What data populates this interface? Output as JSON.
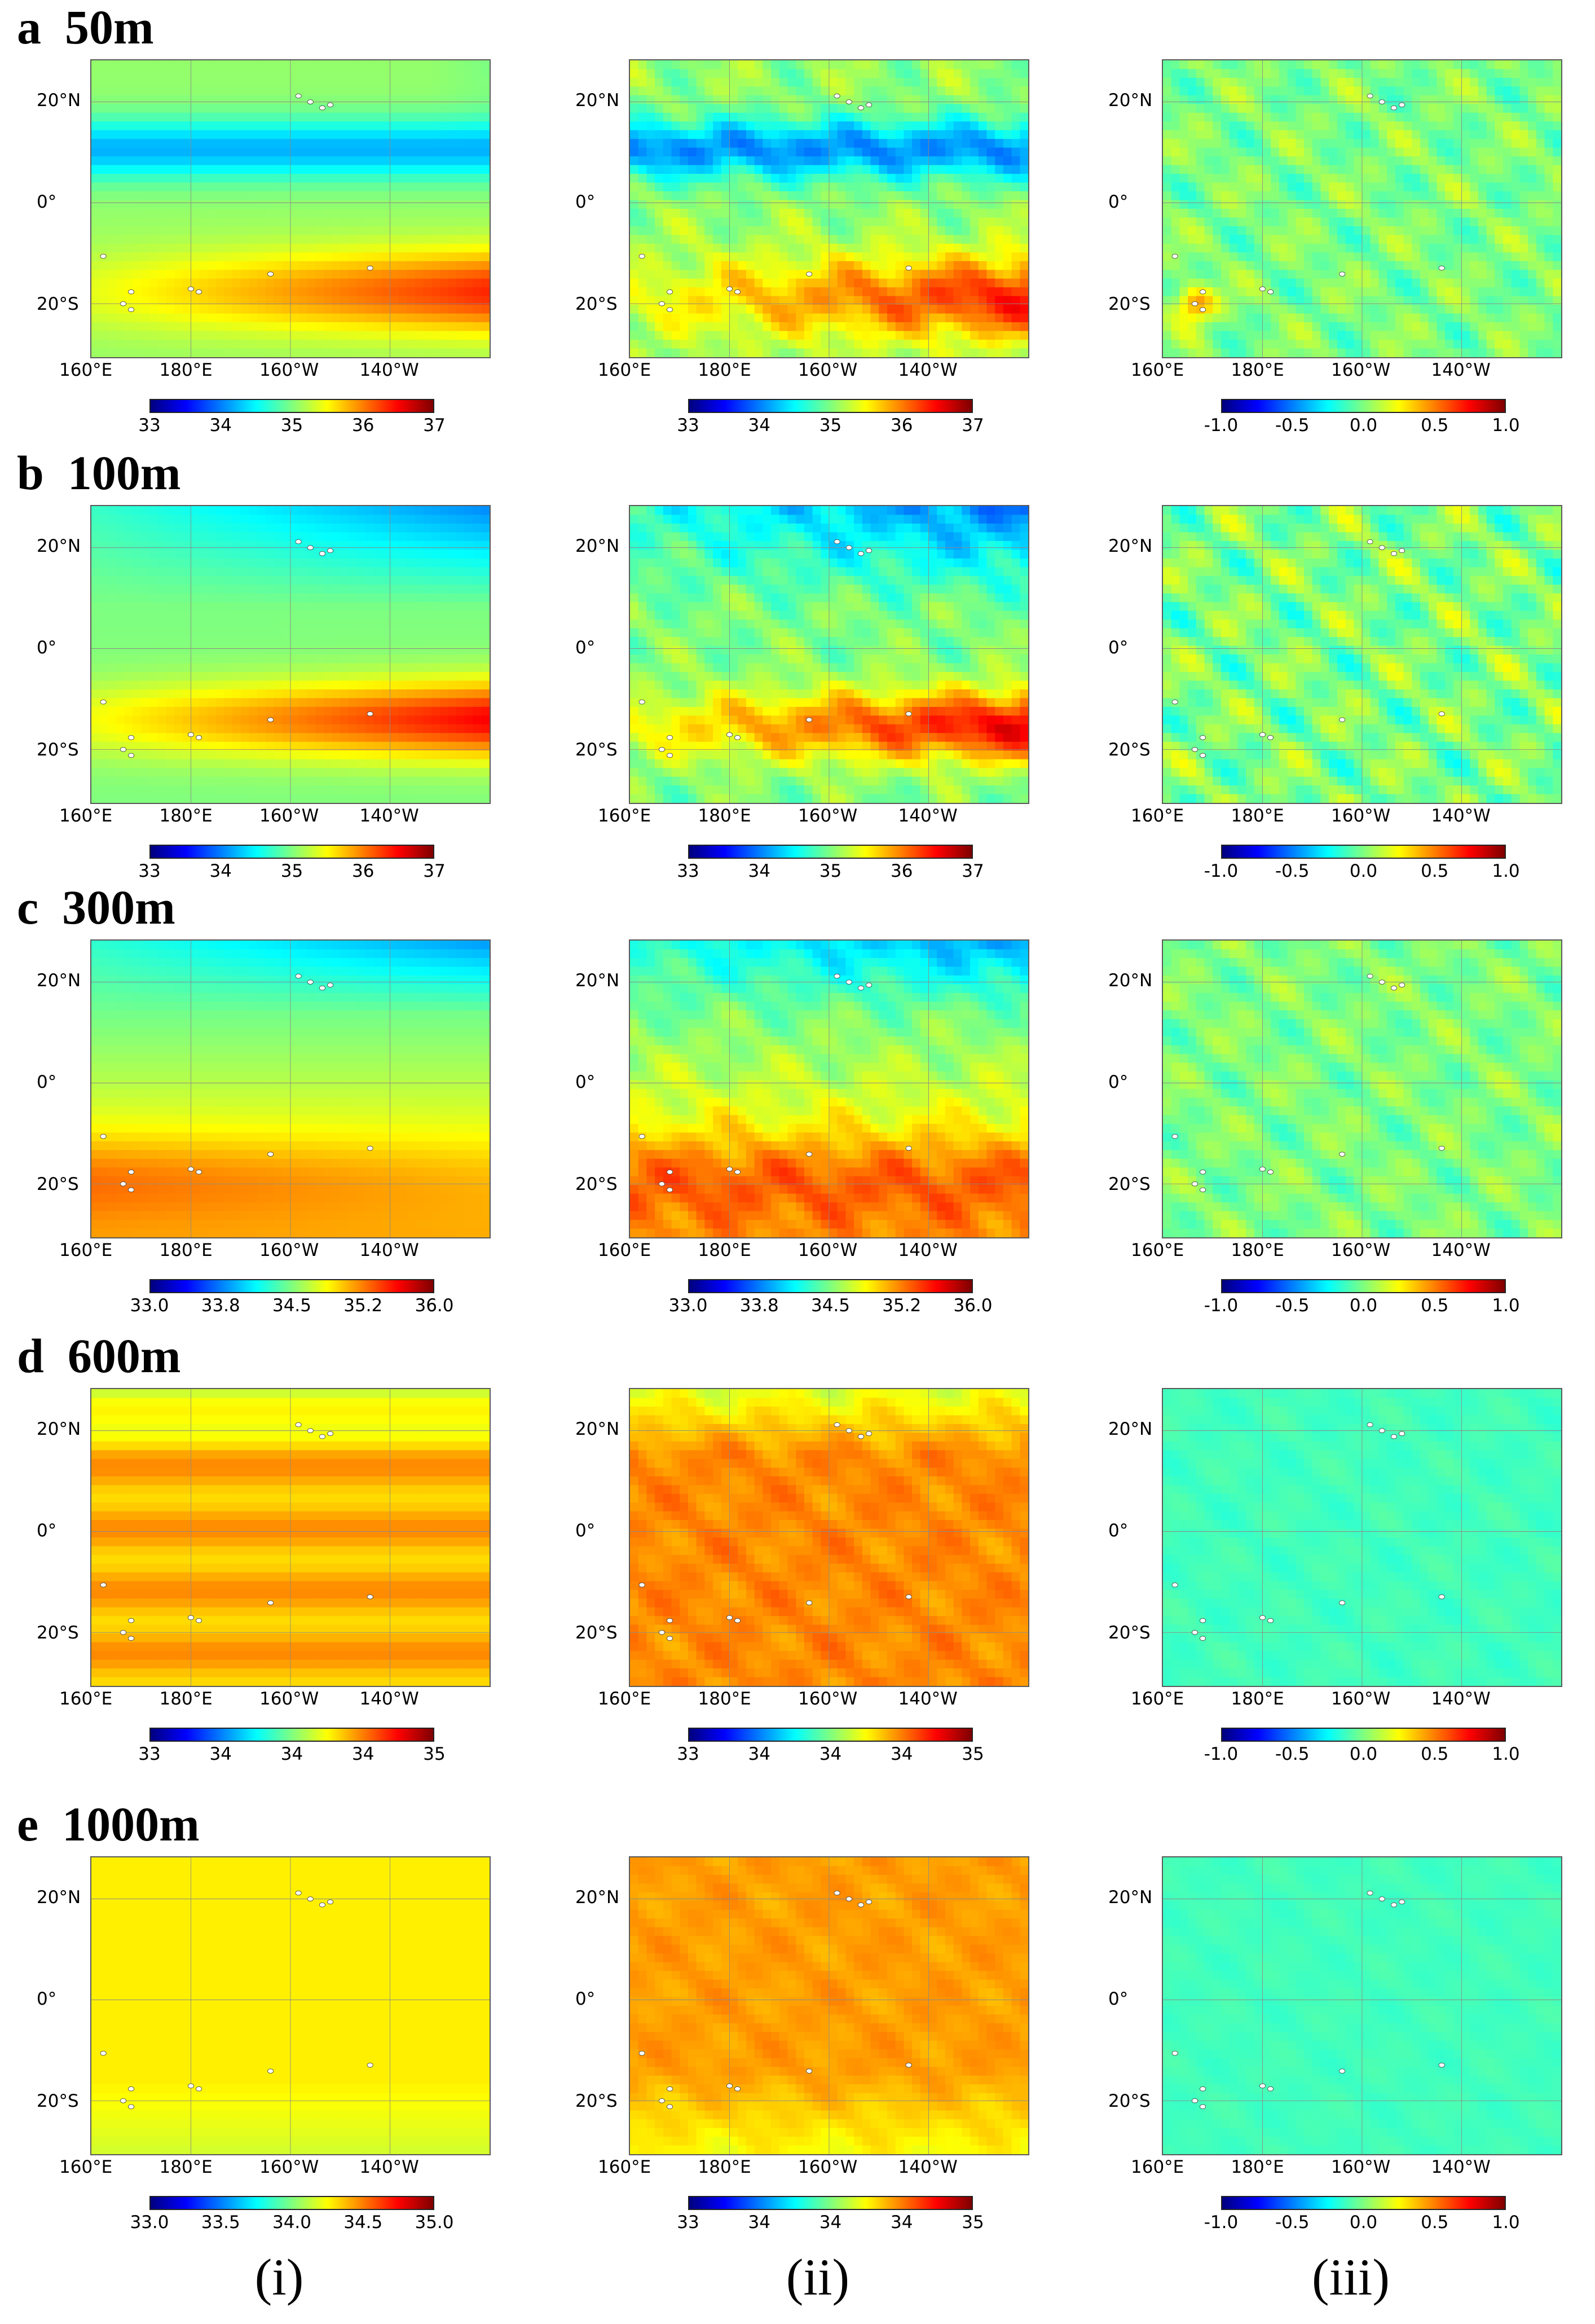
{
  "chart_data": {
    "type": "heatmap",
    "title": "",
    "xlabel": "",
    "ylabel": "",
    "x_ticks": [
      "160°E",
      "180°E",
      "160°W",
      "140°W"
    ],
    "y_ticks": [
      "20°N",
      "0°",
      "20°S"
    ],
    "columns": [
      "(i)",
      "(ii)",
      "(iii)"
    ],
    "colormap": [
      "#00007f",
      "#0000ff",
      "#007fff",
      "#00ffff",
      "#7fff7f",
      "#ffff00",
      "#ff7f00",
      "#ff0000",
      "#7f0000"
    ],
    "rows": [
      {
        "letter": "a",
        "depth": "50m",
        "panels": [
          {
            "column": "(i)",
            "kind": "salinity",
            "cbar_ticks": [
              "33",
              "34",
              "35",
              "36",
              "37"
            ],
            "range": [
              33,
              37
            ]
          },
          {
            "column": "(ii)",
            "kind": "salinity",
            "cbar_ticks": [
              "33",
              "34",
              "35",
              "36",
              "37"
            ],
            "range": [
              33,
              37
            ]
          },
          {
            "column": "(iii)",
            "kind": "difference",
            "cbar_ticks": [
              "-1.0",
              "-0.5",
              "0.0",
              "0.5",
              "1.0"
            ],
            "range": [
              -1.0,
              1.0
            ]
          }
        ]
      },
      {
        "letter": "b",
        "depth": "100m",
        "panels": [
          {
            "column": "(i)",
            "kind": "salinity",
            "cbar_ticks": [
              "33",
              "34",
              "35",
              "36",
              "37"
            ],
            "range": [
              33,
              37
            ]
          },
          {
            "column": "(ii)",
            "kind": "salinity",
            "cbar_ticks": [
              "33",
              "34",
              "35",
              "36",
              "37"
            ],
            "range": [
              33,
              37
            ]
          },
          {
            "column": "(iii)",
            "kind": "difference",
            "cbar_ticks": [
              "-1.0",
              "-0.5",
              "0.0",
              "0.5",
              "1.0"
            ],
            "range": [
              -1.0,
              1.0
            ]
          }
        ]
      },
      {
        "letter": "c",
        "depth": "300m",
        "panels": [
          {
            "column": "(i)",
            "kind": "salinity",
            "cbar_ticks": [
              "33.0",
              "33.8",
              "34.5",
              "35.2",
              "36.0"
            ],
            "range": [
              33.0,
              36.0
            ]
          },
          {
            "column": "(ii)",
            "kind": "salinity",
            "cbar_ticks": [
              "33.0",
              "33.8",
              "34.5",
              "35.2",
              "36.0"
            ],
            "range": [
              33.0,
              36.0
            ]
          },
          {
            "column": "(iii)",
            "kind": "difference",
            "cbar_ticks": [
              "-1.0",
              "-0.5",
              "0.0",
              "0.5",
              "1.0"
            ],
            "range": [
              -1.0,
              1.0
            ]
          }
        ]
      },
      {
        "letter": "d",
        "depth": "600m",
        "panels": [
          {
            "column": "(i)",
            "kind": "salinity",
            "cbar_ticks": [
              "33",
              "34",
              "34",
              "34",
              "35"
            ],
            "range": [
              33,
              35
            ]
          },
          {
            "column": "(ii)",
            "kind": "salinity",
            "cbar_ticks": [
              "33",
              "34",
              "34",
              "34",
              "35"
            ],
            "range": [
              33,
              35
            ]
          },
          {
            "column": "(iii)",
            "kind": "difference",
            "cbar_ticks": [
              "-1.0",
              "-0.5",
              "0.0",
              "0.5",
              "1.0"
            ],
            "range": [
              -1.0,
              1.0
            ]
          }
        ]
      },
      {
        "letter": "e",
        "depth": "1000m",
        "panels": [
          {
            "column": "(i)",
            "kind": "salinity",
            "cbar_ticks": [
              "33.0",
              "33.5",
              "34.0",
              "34.5",
              "35.0"
            ],
            "range": [
              33.0,
              35.0
            ]
          },
          {
            "column": "(ii)",
            "kind": "salinity",
            "cbar_ticks": [
              "33",
              "34",
              "34",
              "34",
              "35"
            ],
            "range": [
              33,
              35
            ]
          },
          {
            "column": "(iii)",
            "kind": "difference",
            "cbar_ticks": [
              "-1.0",
              "-0.5",
              "0.0",
              "0.5",
              "1.0"
            ],
            "range": [
              -1.0,
              1.0
            ]
          }
        ]
      }
    ]
  }
}
